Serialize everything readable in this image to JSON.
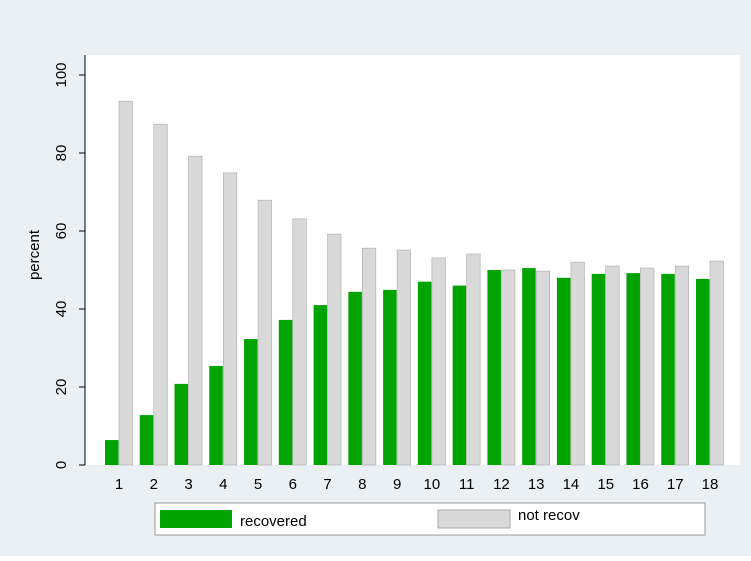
{
  "chart_data": {
    "type": "bar",
    "y_label": "percent",
    "categories": [
      "1",
      "2",
      "3",
      "4",
      "5",
      "6",
      "7",
      "8",
      "9",
      "10",
      "11",
      "12",
      "13",
      "14",
      "15",
      "16",
      "17",
      "18"
    ],
    "series": [
      {
        "name": "recovered",
        "color": "#00a300",
        "values": [
          6.4,
          12.8,
          20.8,
          25.4,
          32.3,
          37.2,
          41.0,
          44.4,
          44.9,
          47.0,
          46.0,
          50.0,
          50.5,
          48.0,
          49.0,
          49.2,
          49.0,
          47.7
        ]
      },
      {
        "name": "not recov",
        "color": "#d9d9d9",
        "values": [
          93.3,
          87.4,
          79.2,
          74.9,
          67.9,
          63.1,
          59.2,
          55.6,
          55.1,
          53.1,
          54.1,
          50.0,
          49.7,
          52.0,
          51.0,
          50.5,
          51.0,
          52.3
        ]
      }
    ],
    "ylim": [
      0,
      100
    ],
    "yticks": [
      0,
      20,
      40,
      60,
      80,
      100
    ],
    "grid": false
  }
}
